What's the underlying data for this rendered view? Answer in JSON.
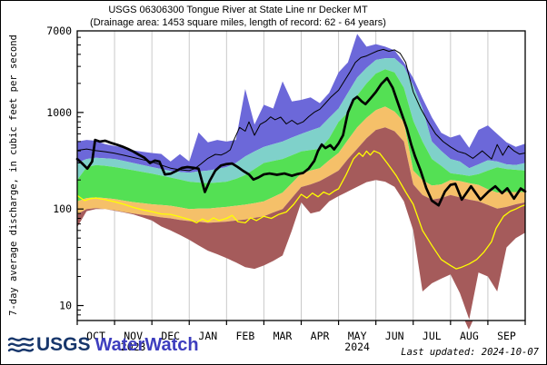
{
  "title": {
    "line1": "USGS 06306300 Tongue River at State Line nr Decker MT",
    "line2": "(Drainage area: 1453 square miles, length of record: 62 - 64 years)"
  },
  "footer": {
    "logo_usgs": "USGS",
    "logo_waterwatch": "WaterWatch",
    "last_updated": "Last updated: 2024-10-07"
  },
  "chart_data": {
    "type": "area",
    "title": "USGS 06306300 Tongue River at State Line nr Decker MT",
    "subtitle": "(Drainage area: 1453 square miles, length of record: 62 - 64 years)",
    "xlabel": "",
    "ylabel": "7-day average discharge, in cubic feet per second",
    "y_scale": "log",
    "ylim": [
      7,
      7000
    ],
    "y_major_ticks": [
      {
        "value": 7000,
        "label": "7000"
      },
      {
        "value": 1000,
        "label": "1000"
      },
      {
        "value": 100,
        "label": "100"
      },
      {
        "value": 10,
        "label": "10"
      }
    ],
    "x_months": [
      "OCT",
      "NOV",
      "DEC",
      "JAN",
      "FEB",
      "MAR",
      "APR",
      "MAY",
      "JUN",
      "JUL",
      "AUG",
      "SEP"
    ],
    "x_year_labels": [
      {
        "under_month": "NOV",
        "label": "2023"
      },
      {
        "under_month": "MAY",
        "label": "2024"
      }
    ],
    "grid_color": "#c9c9c9",
    "t_grid_step": 0.25,
    "series": {
      "max": [
        500,
        520,
        510,
        470,
        450,
        430,
        405,
        392,
        380,
        372,
        310,
        370,
        310,
        620,
        490,
        520,
        500,
        520,
        1750,
        750,
        1200,
        1100,
        2100,
        1300,
        1350,
        1430,
        1250,
        1600,
        2600,
        3300,
        6500,
        4800,
        5100,
        4800,
        4400,
        3300,
        2270,
        1400,
        890,
        615,
        550,
        590,
        430,
        660,
        735,
        600,
        490,
        440,
        475
      ],
      "p90": [
        300,
        330,
        340,
        335,
        330,
        315,
        300,
        285,
        272,
        260,
        248,
        242,
        237,
        245,
        250,
        260,
        272,
        300,
        350,
        395,
        440,
        470,
        500,
        550,
        600,
        650,
        700,
        880,
        1100,
        1600,
        2300,
        2900,
        3500,
        3650,
        3650,
        3000,
        1900,
        1100,
        500,
        400,
        330,
        310,
        265,
        290,
        320,
        310,
        290,
        285,
        300
      ],
      "p75": [
        200,
        270,
        285,
        280,
        272,
        262,
        252,
        242,
        232,
        222,
        212,
        202,
        192,
        188,
        185,
        188,
        192,
        205,
        225,
        260,
        300,
        315,
        330,
        360,
        395,
        408,
        420,
        540,
        800,
        1000,
        1500,
        2000,
        2530,
        2800,
        2600,
        1800,
        820,
        500,
        330,
        280,
        235,
        228,
        220,
        230,
        250,
        270,
        260,
        255,
        250
      ],
      "p25": [
        120,
        130,
        132,
        130,
        127,
        122,
        118,
        115,
        112,
        110,
        108,
        104,
        100,
        101,
        101,
        103,
        105,
        108,
        111,
        115,
        120,
        133,
        148,
        185,
        233,
        250,
        265,
        320,
        380,
        520,
        700,
        880,
        1060,
        1150,
        1020,
        800,
        250,
        200,
        175,
        180,
        200,
        195,
        185,
        178,
        160,
        148,
        150,
        150,
        150
      ],
      "p10": [
        88,
        100,
        102,
        100,
        97,
        93,
        90,
        87,
        85,
        82,
        80,
        77,
        75,
        74,
        72,
        73,
        74,
        76,
        78,
        81,
        84,
        92,
        100,
        130,
        169,
        180,
        195,
        220,
        250,
        330,
        420,
        540,
        660,
        700,
        640,
        500,
        180,
        140,
        125,
        130,
        140,
        132,
        125,
        120,
        110,
        101,
        105,
        112,
        117
      ],
      "min": [
        65,
        95,
        100,
        100,
        96,
        92,
        88,
        82,
        76,
        66,
        60,
        54,
        48,
        42,
        37,
        34,
        31,
        28,
        25,
        24,
        26,
        29,
        33,
        60,
        117,
        90,
        95,
        120,
        136,
        152,
        170,
        190,
        200,
        192,
        170,
        120,
        60,
        14,
        17,
        19,
        21,
        13.5,
        7.2,
        22,
        20,
        14,
        40,
        50,
        57
      ],
      "yellow": [
        [
          0,
          138
        ],
        [
          0.2,
          122
        ],
        [
          0.35,
          128
        ],
        [
          0.5,
          130
        ],
        [
          0.75,
          125
        ],
        [
          1,
          119
        ],
        [
          1.25,
          112
        ],
        [
          1.5,
          104
        ],
        [
          1.75,
          98
        ],
        [
          2,
          94
        ],
        [
          2.25,
          89
        ],
        [
          2.5,
          88
        ],
        [
          2.75,
          83
        ],
        [
          3,
          78
        ],
        [
          3.2,
          72
        ],
        [
          3.35,
          79
        ],
        [
          3.5,
          74
        ],
        [
          3.65,
          81
        ],
        [
          3.8,
          76
        ],
        [
          4,
          80
        ],
        [
          4.15,
          86
        ],
        [
          4.3,
          74
        ],
        [
          4.5,
          72
        ],
        [
          4.65,
          81
        ],
        [
          4.8,
          76
        ],
        [
          5,
          84
        ],
        [
          5.2,
          80
        ],
        [
          5.4,
          88
        ],
        [
          5.6,
          93
        ],
        [
          5.8,
          112
        ],
        [
          6,
          142
        ],
        [
          6.15,
          130
        ],
        [
          6.3,
          146
        ],
        [
          6.45,
          134
        ],
        [
          6.6,
          150
        ],
        [
          6.75,
          141
        ],
        [
          6.9,
          155
        ],
        [
          7,
          162
        ],
        [
          7.2,
          225
        ],
        [
          7.4,
          330
        ],
        [
          7.55,
          380
        ],
        [
          7.65,
          350
        ],
        [
          7.75,
          398
        ],
        [
          7.85,
          362
        ],
        [
          7.95,
          400
        ],
        [
          8.1,
          378
        ],
        [
          8.3,
          300
        ],
        [
          8.55,
          220
        ],
        [
          8.8,
          150
        ],
        [
          9,
          112
        ],
        [
          9.25,
          60
        ],
        [
          9.5,
          42
        ],
        [
          9.75,
          30
        ],
        [
          10,
          26
        ],
        [
          10.15,
          24
        ],
        [
          10.3,
          25
        ],
        [
          10.5,
          27
        ],
        [
          10.7,
          30
        ],
        [
          10.9,
          36
        ],
        [
          11.1,
          46
        ],
        [
          11.22,
          63
        ],
        [
          11.42,
          84
        ],
        [
          11.6,
          95
        ],
        [
          11.75,
          100
        ],
        [
          11.9,
          107
        ],
        [
          12,
          110
        ]
      ],
      "mean": [
        [
          0,
          405
        ],
        [
          0.25,
          418
        ],
        [
          0.5,
          402
        ],
        [
          0.75,
          392
        ],
        [
          1,
          378
        ],
        [
          1.25,
          360
        ],
        [
          1.5,
          342
        ],
        [
          1.75,
          325
        ],
        [
          2,
          308
        ],
        [
          2.25,
          285
        ],
        [
          2.5,
          265
        ],
        [
          2.75,
          255
        ],
        [
          3,
          250
        ],
        [
          3.15,
          262
        ],
        [
          3.3,
          290
        ],
        [
          3.5,
          335
        ],
        [
          3.7,
          368
        ],
        [
          3.85,
          362
        ],
        [
          4,
          385
        ],
        [
          4.1,
          410
        ],
        [
          4.2,
          520
        ],
        [
          4.35,
          700
        ],
        [
          4.5,
          640
        ],
        [
          4.6,
          800
        ],
        [
          4.75,
          580
        ],
        [
          4.9,
          750
        ],
        [
          5.05,
          810
        ],
        [
          5.18,
          900
        ],
        [
          5.3,
          840
        ],
        [
          5.45,
          895
        ],
        [
          5.6,
          760
        ],
        [
          5.75,
          830
        ],
        [
          5.9,
          755
        ],
        [
          6.05,
          800
        ],
        [
          6.2,
          905
        ],
        [
          6.35,
          1005
        ],
        [
          6.5,
          1080
        ],
        [
          6.65,
          1250
        ],
        [
          6.8,
          1450
        ],
        [
          7,
          1700
        ],
        [
          7.15,
          2100
        ],
        [
          7.3,
          2600
        ],
        [
          7.45,
          3300
        ],
        [
          7.6,
          3700
        ],
        [
          7.75,
          3850
        ],
        [
          7.9,
          4100
        ],
        [
          8.05,
          4350
        ],
        [
          8.2,
          4500
        ],
        [
          8.35,
          4300
        ],
        [
          8.5,
          4450
        ],
        [
          8.65,
          4100
        ],
        [
          8.8,
          3300
        ],
        [
          8.9,
          2300
        ],
        [
          9,
          1630
        ],
        [
          9.2,
          1100
        ],
        [
          9.4,
          800
        ],
        [
          9.6,
          600
        ],
        [
          9.8,
          500
        ],
        [
          10,
          440
        ],
        [
          10.2,
          395
        ],
        [
          10.4,
          375
        ],
        [
          10.6,
          335
        ],
        [
          10.85,
          400
        ],
        [
          11.1,
          330
        ],
        [
          11.25,
          465
        ],
        [
          11.4,
          360
        ],
        [
          11.55,
          450
        ],
        [
          11.7,
          400
        ],
        [
          11.85,
          370
        ],
        [
          12,
          380
        ]
      ],
      "current": [
        [
          0,
          330
        ],
        [
          0.12,
          300
        ],
        [
          0.27,
          262
        ],
        [
          0.4,
          310
        ],
        [
          0.48,
          520
        ],
        [
          0.6,
          500
        ],
        [
          0.75,
          510
        ],
        [
          0.9,
          485
        ],
        [
          1.05,
          465
        ],
        [
          1.2,
          445
        ],
        [
          1.35,
          420
        ],
        [
          1.5,
          395
        ],
        [
          1.65,
          365
        ],
        [
          1.8,
          340
        ],
        [
          1.95,
          300
        ],
        [
          2.08,
          318
        ],
        [
          2.2,
          310
        ],
        [
          2.35,
          228
        ],
        [
          2.5,
          232
        ],
        [
          2.65,
          248
        ],
        [
          2.8,
          266
        ],
        [
          2.95,
          272
        ],
        [
          3.1,
          268
        ],
        [
          3.25,
          262
        ],
        [
          3.42,
          150
        ],
        [
          3.55,
          196
        ],
        [
          3.7,
          250
        ],
        [
          3.85,
          282
        ],
        [
          4,
          292
        ],
        [
          4.15,
          296
        ],
        [
          4.3,
          272
        ],
        [
          4.45,
          248
        ],
        [
          4.6,
          228
        ],
        [
          4.72,
          202
        ],
        [
          4.85,
          212
        ],
        [
          5,
          228
        ],
        [
          5.15,
          233
        ],
        [
          5.35,
          226
        ],
        [
          5.55,
          233
        ],
        [
          5.75,
          221
        ],
        [
          5.9,
          230
        ],
        [
          6.05,
          236
        ],
        [
          6.2,
          262
        ],
        [
          6.35,
          315
        ],
        [
          6.45,
          400
        ],
        [
          6.55,
          465
        ],
        [
          6.65,
          428
        ],
        [
          6.78,
          458
        ],
        [
          6.88,
          414
        ],
        [
          7,
          478
        ],
        [
          7.12,
          580
        ],
        [
          7.25,
          1000
        ],
        [
          7.4,
          1360
        ],
        [
          7.5,
          1450
        ],
        [
          7.62,
          1300
        ],
        [
          7.72,
          1220
        ],
        [
          7.87,
          1420
        ],
        [
          8,
          1630
        ],
        [
          8.15,
          1980
        ],
        [
          8.3,
          2270
        ],
        [
          8.45,
          1800
        ],
        [
          8.57,
          1320
        ],
        [
          8.7,
          950
        ],
        [
          8.83,
          680
        ],
        [
          8.95,
          460
        ],
        [
          9.05,
          350
        ],
        [
          9.2,
          248
        ],
        [
          9.35,
          165
        ],
        [
          9.5,
          122
        ],
        [
          9.68,
          109
        ],
        [
          9.85,
          152
        ],
        [
          10,
          178
        ],
        [
          10.13,
          182
        ],
        [
          10.3,
          125
        ],
        [
          10.55,
          172
        ],
        [
          10.8,
          125
        ],
        [
          11.02,
          152
        ],
        [
          11.2,
          172
        ],
        [
          11.38,
          146
        ],
        [
          11.52,
          164
        ],
        [
          11.7,
          128
        ],
        [
          11.88,
          163
        ],
        [
          12,
          152
        ]
      ]
    },
    "bands": [
      {
        "name": "percentile-90-to-max",
        "color": "#6c68d9",
        "upper": "max",
        "lower": "p90"
      },
      {
        "name": "percentile-75-90",
        "color": "#7fd1ca",
        "upper": "p90",
        "lower": "p75"
      },
      {
        "name": "percentile-25-75",
        "color": "#54e054",
        "upper": "p75",
        "lower": "p25"
      },
      {
        "name": "percentile-10-25",
        "color": "#f5c069",
        "upper": "p25",
        "lower": "p10"
      },
      {
        "name": "percentile-min-10",
        "color": "#a55b5b",
        "upper": "p10",
        "lower": "min"
      }
    ],
    "lines": [
      {
        "name": "yellow-line",
        "series": "yellow",
        "color": "#ffff00",
        "width": 1.3
      },
      {
        "name": "mean-line",
        "series": "mean",
        "color": "#000000",
        "width": 1
      },
      {
        "name": "current-year-line",
        "series": "current",
        "color": "#000000",
        "width": 2.7
      }
    ],
    "marker": {
      "name": "min-below-scale-arrow",
      "t": 10.49,
      "color": "#a55b5b"
    },
    "legend": "none"
  }
}
